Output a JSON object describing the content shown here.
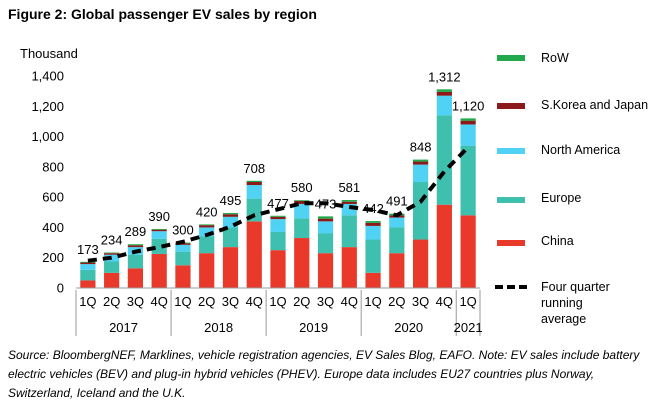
{
  "figure_title": "Figure 2:  Global passenger EV sales by region",
  "source_note": "Source: BloombergNEF, Marklines, vehicle registration agencies, EV Sales Blog, EAFO. Note: EV sales include battery electric vehicles (BEV) and plug-in hybrid vehicles (PHEV). Europe data includes EU27 countries plus Norway, Switzerland, Iceland and the U.K.",
  "chart_data": {
    "type": "bar",
    "stacked": true,
    "ylabel": "Thousand",
    "ylim": [
      0,
      1400
    ],
    "yticks": [
      "0",
      "200",
      "400",
      "600",
      "800",
      "1,000",
      "1,200",
      "1,400"
    ],
    "categories": [
      "1Q",
      "2Q",
      "3Q",
      "4Q",
      "1Q",
      "2Q",
      "3Q",
      "4Q",
      "1Q",
      "2Q",
      "3Q",
      "4Q",
      "1Q",
      "2Q",
      "3Q",
      "4Q",
      "1Q"
    ],
    "years": [
      {
        "label": "2017",
        "start": 0,
        "end": 3
      },
      {
        "label": "2018",
        "start": 4,
        "end": 7
      },
      {
        "label": "2019",
        "start": 8,
        "end": 11
      },
      {
        "label": "2020",
        "start": 12,
        "end": 15
      },
      {
        "label": "2021",
        "start": 16,
        "end": 16
      }
    ],
    "totals_labels": [
      "173",
      "234",
      "289",
      "390",
      "300",
      "420",
      "495",
      "708",
      "477",
      "580",
      "473",
      "581",
      "442",
      "491",
      "848",
      "1,312",
      "1,120"
    ],
    "series": [
      {
        "name": "China",
        "color": "#e8392b",
        "values": [
          50,
          100,
          130,
          225,
          150,
          230,
          270,
          440,
          250,
          330,
          230,
          270,
          100,
          230,
          320,
          550,
          480
        ]
      },
      {
        "name": "Europe",
        "color": "#3fbfad",
        "values": [
          70,
          75,
          90,
          100,
          90,
          110,
          130,
          150,
          120,
          130,
          130,
          210,
          220,
          170,
          380,
          590,
          460
        ]
      },
      {
        "name": "North America",
        "color": "#4fd2f4",
        "values": [
          38,
          45,
          50,
          50,
          45,
          60,
          70,
          90,
          85,
          95,
          80,
          75,
          90,
          65,
          115,
          130,
          140
        ]
      },
      {
        "name": "S.Korea and Japan",
        "color": "#8b1a1a",
        "values": [
          10,
          10,
          12,
          10,
          10,
          15,
          17,
          20,
          15,
          20,
          18,
          15,
          20,
          14,
          20,
          25,
          25
        ]
      },
      {
        "name": "RoW",
        "color": "#20a94a",
        "values": [
          5,
          4,
          7,
          5,
          5,
          5,
          8,
          8,
          7,
          5,
          15,
          11,
          12,
          12,
          13,
          17,
          15
        ]
      }
    ],
    "running_average": {
      "name": "Four quarter running average",
      "values": [
        180,
        200,
        240,
        270,
        305,
        350,
        405,
        480,
        520,
        560,
        560,
        535,
        515,
        480,
        570,
        770,
        930
      ]
    }
  }
}
